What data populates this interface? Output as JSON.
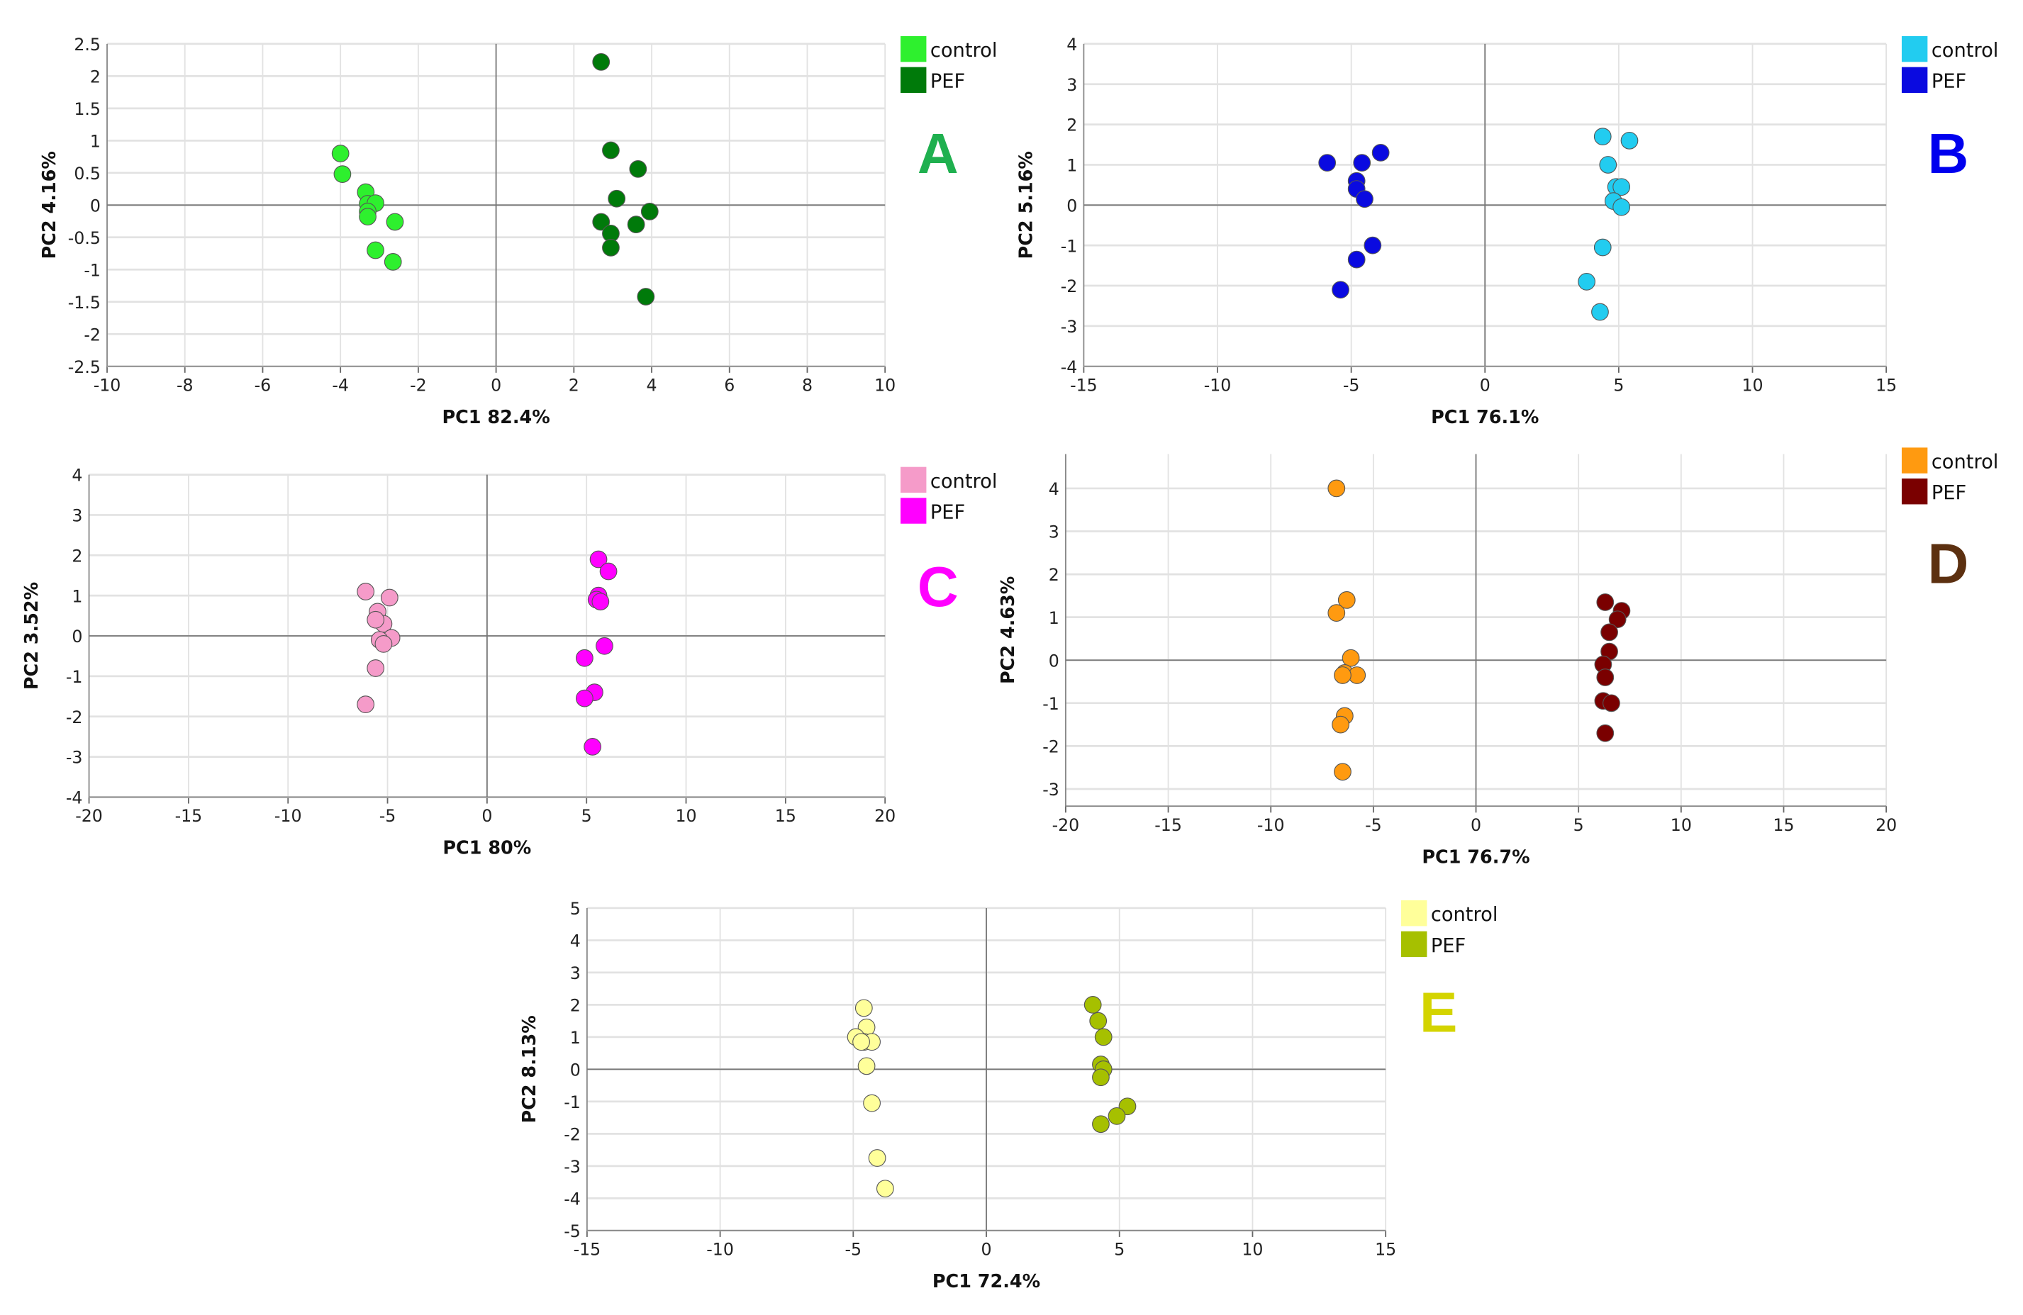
{
  "chart_data": [
    {
      "type": "scatter",
      "panel": "A",
      "xlabel": "PC1 82.4%",
      "ylabel": "PC2 4.16%",
      "xlim": [
        -10,
        10
      ],
      "ylim": [
        -2.5,
        2.5
      ],
      "xticks": [
        -10,
        -8,
        -6,
        -4,
        -2,
        0,
        2,
        4,
        6,
        8,
        10
      ],
      "yticks": [
        -2.5,
        -2,
        -1.5,
        -1,
        -0.5,
        0,
        0.5,
        1,
        1.5,
        2,
        2.5
      ],
      "grid": true,
      "legend": "top-right",
      "letter_color": "#1fb04f",
      "series": [
        {
          "name": "control",
          "color": "#2ef02e",
          "points": [
            [
              -4.0,
              0.8
            ],
            [
              -3.95,
              0.48
            ],
            [
              -3.35,
              0.2
            ],
            [
              -3.3,
              0.02
            ],
            [
              -3.1,
              0.03
            ],
            [
              -3.3,
              -0.1
            ],
            [
              -3.3,
              -0.18
            ],
            [
              -2.6,
              -0.26
            ],
            [
              -3.1,
              -0.7
            ],
            [
              -2.65,
              -0.88
            ]
          ]
        },
        {
          "name": "PEF",
          "color": "#007a0a",
          "points": [
            [
              2.7,
              2.22
            ],
            [
              2.95,
              0.85
            ],
            [
              3.65,
              0.56
            ],
            [
              3.1,
              0.1
            ],
            [
              3.95,
              -0.1
            ],
            [
              2.7,
              -0.26
            ],
            [
              3.6,
              -0.3
            ],
            [
              2.95,
              -0.44
            ],
            [
              2.95,
              -0.66
            ],
            [
              3.85,
              -1.42
            ]
          ]
        }
      ]
    },
    {
      "type": "scatter",
      "panel": "B",
      "xlabel": "PC1 76.1%",
      "ylabel": "PC2 5.16%",
      "xlim": [
        -15,
        15
      ],
      "ylim": [
        -4,
        4
      ],
      "xticks": [
        -15,
        -10,
        -5,
        0,
        5,
        10,
        15
      ],
      "yticks": [
        -4,
        -3,
        -2,
        -1,
        0,
        1,
        2,
        3,
        4
      ],
      "grid": true,
      "legend": "top-right",
      "letter_color": "#0000ee",
      "series": [
        {
          "name": "control",
          "color": "#22ccf0",
          "points": [
            [
              4.4,
              1.7
            ],
            [
              5.4,
              1.6
            ],
            [
              4.6,
              1.0
            ],
            [
              4.9,
              0.45
            ],
            [
              5.1,
              0.45
            ],
            [
              4.8,
              0.1
            ],
            [
              5.1,
              -0.05
            ],
            [
              4.4,
              -1.05
            ],
            [
              3.8,
              -1.9
            ],
            [
              4.3,
              -2.65
            ]
          ]
        },
        {
          "name": "PEF",
          "color": "#0a0ae0",
          "points": [
            [
              -5.9,
              1.05
            ],
            [
              -4.6,
              1.05
            ],
            [
              -3.9,
              1.3
            ],
            [
              -4.8,
              0.6
            ],
            [
              -4.8,
              0.4
            ],
            [
              -4.5,
              0.15
            ],
            [
              -4.2,
              -1.0
            ],
            [
              -4.8,
              -1.35
            ],
            [
              -5.4,
              -2.1
            ]
          ]
        }
      ]
    },
    {
      "type": "scatter",
      "panel": "C",
      "xlabel": "PC1 80%",
      "ylabel": "PC2 3.52%",
      "xlim": [
        -20,
        20
      ],
      "ylim": [
        -4,
        4
      ],
      "xticks": [
        -20,
        -15,
        -10,
        -5,
        0,
        5,
        10,
        15,
        20
      ],
      "yticks": [
        -4,
        -3,
        -2,
        -1,
        0,
        1,
        2,
        3,
        4
      ],
      "grid": true,
      "legend": "top-right",
      "letter_color": "#ff00ff",
      "series": [
        {
          "name": "control",
          "color": "#f59bc9",
          "points": [
            [
              -6.1,
              1.1
            ],
            [
              -4.9,
              0.95
            ],
            [
              -5.5,
              0.6
            ],
            [
              -5.2,
              0.3
            ],
            [
              -5.6,
              0.4
            ],
            [
              -4.8,
              -0.05
            ],
            [
              -5.4,
              -0.1
            ],
            [
              -5.2,
              -0.2
            ],
            [
              -5.6,
              -0.8
            ],
            [
              -6.1,
              -1.7
            ]
          ]
        },
        {
          "name": "PEF",
          "color": "#ff00ff",
          "points": [
            [
              5.6,
              1.9
            ],
            [
              6.1,
              1.6
            ],
            [
              5.6,
              1.0
            ],
            [
              5.5,
              0.9
            ],
            [
              5.7,
              0.85
            ],
            [
              5.9,
              -0.25
            ],
            [
              4.9,
              -0.55
            ],
            [
              5.4,
              -1.4
            ],
            [
              4.9,
              -1.55
            ],
            [
              5.3,
              -2.75
            ]
          ]
        }
      ]
    },
    {
      "type": "scatter",
      "panel": "D",
      "xlabel": "PC1 76.7%",
      "ylabel": "PC2 4.63%",
      "xlim": [
        -20,
        20
      ],
      "ylim": [
        -3.4,
        4.8
      ],
      "xticks": [
        -20,
        -15,
        -10,
        -5,
        0,
        5,
        10,
        15,
        20
      ],
      "yticks": [
        -3,
        -2,
        -1,
        0,
        1,
        2,
        3,
        4
      ],
      "grid": true,
      "legend": "top-right",
      "letter_color": "#5c3010",
      "series": [
        {
          "name": "control",
          "color": "#ff9a10",
          "points": [
            [
              -6.8,
              4.0
            ],
            [
              -6.3,
              1.4
            ],
            [
              -6.8,
              1.1
            ],
            [
              -6.1,
              0.05
            ],
            [
              -6.4,
              -0.3
            ],
            [
              -5.8,
              -0.35
            ],
            [
              -6.5,
              -0.35
            ],
            [
              -6.4,
              -1.3
            ],
            [
              -6.6,
              -1.5
            ],
            [
              -6.5,
              -2.6
            ]
          ]
        },
        {
          "name": "PEF",
          "color": "#7a0000",
          "points": [
            [
              6.3,
              1.35
            ],
            [
              7.1,
              1.15
            ],
            [
              6.9,
              0.95
            ],
            [
              6.5,
              0.65
            ],
            [
              6.5,
              0.2
            ],
            [
              6.2,
              -0.1
            ],
            [
              6.3,
              -0.4
            ],
            [
              6.2,
              -0.95
            ],
            [
              6.6,
              -1.0
            ],
            [
              6.3,
              -1.7
            ]
          ]
        }
      ]
    },
    {
      "type": "scatter",
      "panel": "E",
      "xlabel": "PC1 72.4%",
      "ylabel": "PC2 8.13%",
      "xlim": [
        -15,
        15
      ],
      "ylim": [
        -5,
        5
      ],
      "xticks": [
        -15,
        -10,
        -5,
        0,
        5,
        10,
        15
      ],
      "yticks": [
        -5,
        -4,
        -3,
        -2,
        -1,
        0,
        1,
        2,
        3,
        4,
        5
      ],
      "grid": true,
      "legend": "top-right",
      "letter_color": "#d4d400",
      "series": [
        {
          "name": "control",
          "color": "#ffff9a",
          "points": [
            [
              -4.6,
              1.9
            ],
            [
              -4.5,
              1.3
            ],
            [
              -4.9,
              1.0
            ],
            [
              -4.6,
              0.85
            ],
            [
              -4.3,
              0.85
            ],
            [
              -4.7,
              0.85
            ],
            [
              -4.5,
              0.1
            ],
            [
              -4.3,
              -1.05
            ],
            [
              -4.1,
              -2.75
            ],
            [
              -3.8,
              -3.7
            ]
          ]
        },
        {
          "name": "PEF",
          "color": "#a6c000",
          "points": [
            [
              4.0,
              2.0
            ],
            [
              4.2,
              1.5
            ],
            [
              4.4,
              1.0
            ],
            [
              4.3,
              0.15
            ],
            [
              4.4,
              0.0
            ],
            [
              4.3,
              -0.25
            ],
            [
              5.3,
              -1.15
            ],
            [
              4.9,
              -1.45
            ],
            [
              4.3,
              -1.7
            ]
          ]
        }
      ]
    }
  ]
}
